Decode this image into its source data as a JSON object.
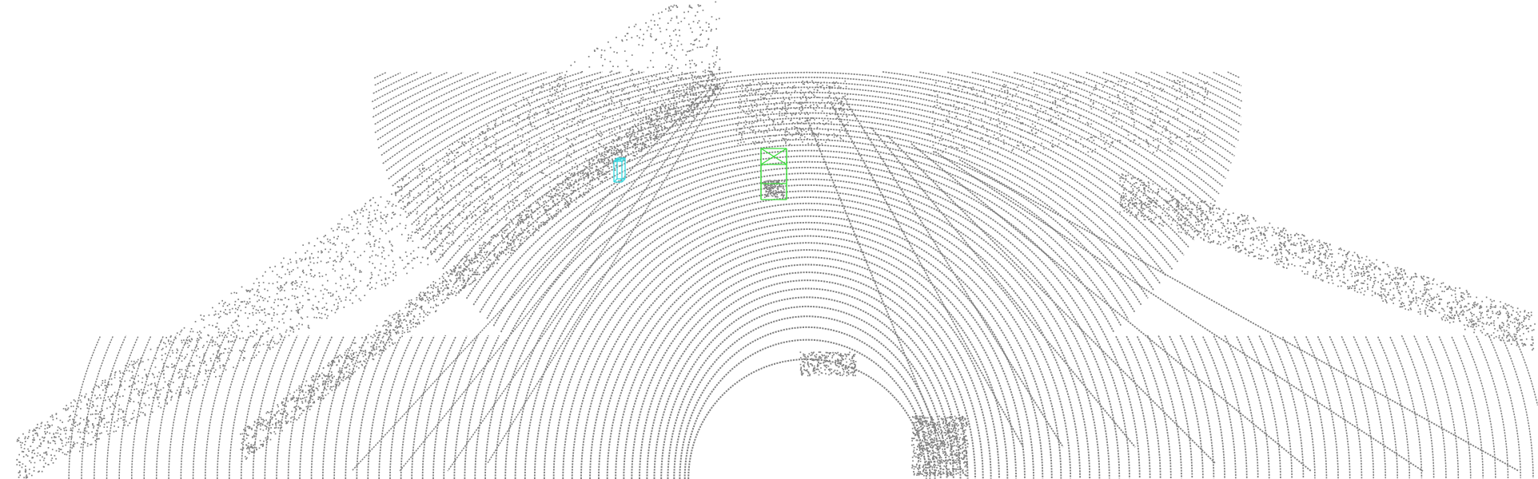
{
  "scene": {
    "background_color": "#ffffff",
    "point_color": "#808080",
    "objects": [
      {
        "label": "car",
        "color": "#3ddc3d"
      },
      {
        "label": "pedestrian",
        "color": "#36d8e0"
      }
    ]
  }
}
